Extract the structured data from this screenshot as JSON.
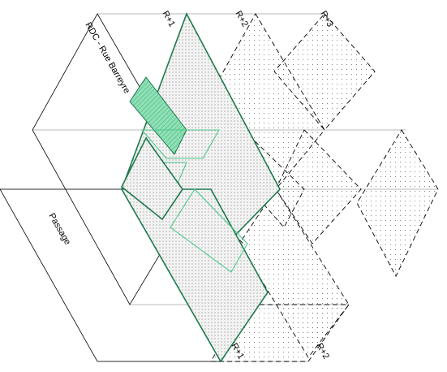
{
  "labels": {
    "ground_floor": "RDC - Rue Barreyre",
    "passage": "Passage",
    "r1_top": "R+1",
    "r2_top": "R+2",
    "r3_top": "R+3",
    "r1_bottom": "R+1",
    "r2_bottom": "R+2"
  },
  "colors": {
    "outline": "#000000",
    "level_r1": "#1e7a4d",
    "level_r1_light": "#4fc98c",
    "highlight_fill": "#6fd3a0"
  }
}
